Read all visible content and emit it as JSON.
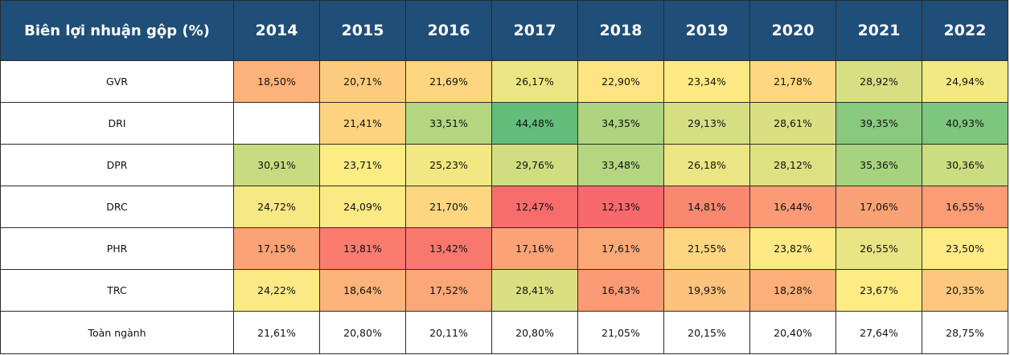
{
  "chart_data": {
    "type": "heatmap",
    "title": "Biên lợi nhuận gộp (%)",
    "x": [
      "2014",
      "2015",
      "2016",
      "2017",
      "2018",
      "2019",
      "2020",
      "2021",
      "2022"
    ],
    "y": [
      "GVR",
      "DRI",
      "DPR",
      "DRC",
      "PHR",
      "TRC",
      "Toàn ngành"
    ],
    "values": [
      [
        "18,50%",
        "20,71%",
        "21,69%",
        "26,17%",
        "22,90%",
        "23,34%",
        "21,78%",
        "28,92%",
        "24,94%"
      ],
      [
        "",
        "21,41%",
        "33,51%",
        "44,48%",
        "34,35%",
        "29,13%",
        "28,61%",
        "39,35%",
        "40,93%"
      ],
      [
        "30,91%",
        "23,71%",
        "25,23%",
        "29,76%",
        "33,48%",
        "26,18%",
        "28,12%",
        "35,36%",
        "30,36%"
      ],
      [
        "24,72%",
        "24,09%",
        "21,70%",
        "12,47%",
        "12,13%",
        "14,81%",
        "16,44%",
        "17,06%",
        "16,55%"
      ],
      [
        "17,15%",
        "13,81%",
        "13,42%",
        "17,16%",
        "17,61%",
        "21,55%",
        "23,82%",
        "26,55%",
        "23,50%"
      ],
      [
        "24,22%",
        "18,64%",
        "17,52%",
        "28,41%",
        "16,43%",
        "19,93%",
        "18,28%",
        "23,67%",
        "20,35%"
      ],
      [
        "21,61%",
        "20,80%",
        "20,11%",
        "20,80%",
        "21,05%",
        "20,15%",
        "20,40%",
        "27,64%",
        "28,75%"
      ]
    ],
    "unit": "%",
    "color_scale": {
      "low": "#f8696b",
      "mid": "#ffeb84",
      "high": "#63be7b"
    },
    "header_color": "#1f4e79",
    "unscaled_rows": [
      "Toàn ngành"
    ]
  }
}
